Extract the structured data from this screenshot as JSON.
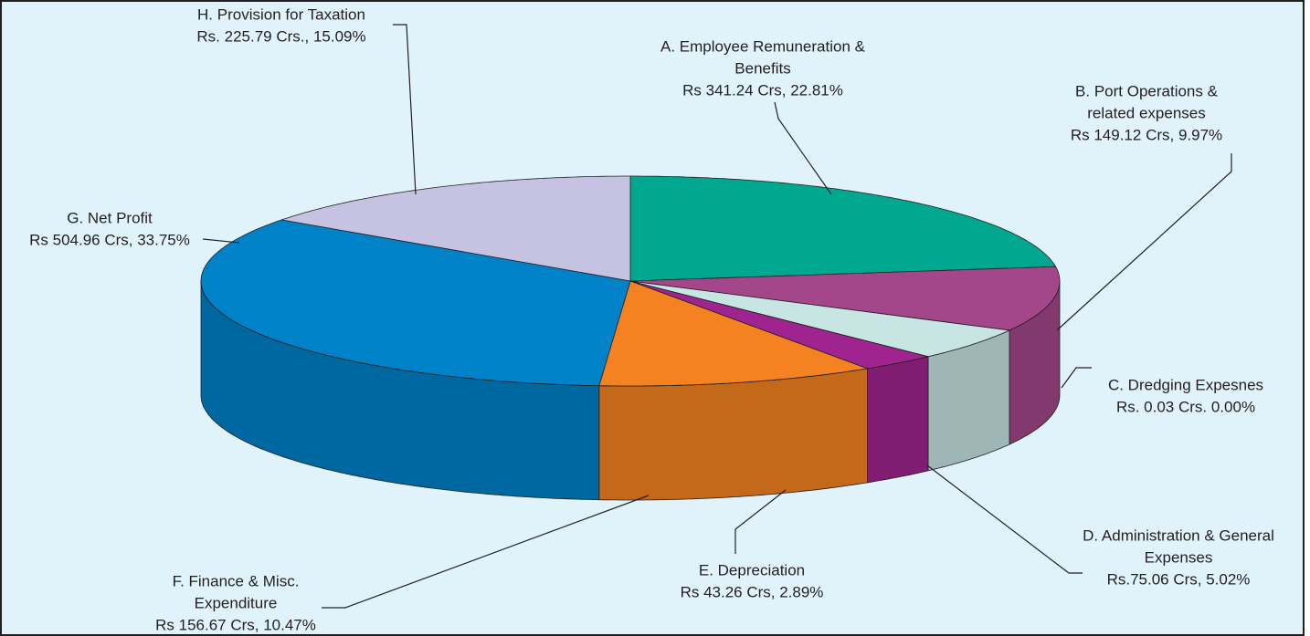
{
  "chart_data": {
    "type": "pie3d",
    "labels": [
      [
        "A. Employee Remuneration &",
        "Benefits",
        "Rs 341.24 Crs, 22.81%"
      ],
      [
        "B. Port Operations &",
        "related expenses",
        "Rs 149.12 Crs, 9.97%"
      ],
      [
        "C. Dredging Expesnes",
        "Rs. 0.03 Crs. 0.00%"
      ],
      [
        "D. Administration & General",
        "Expenses",
        "Rs.75.06 Crs, 5.02%"
      ],
      [
        "E. Depreciation",
        "Rs 43.26 Crs, 2.89%"
      ],
      [
        "F.  Finance & Misc.",
        "Expenditure",
        "Rs 156.67 Crs, 10.47%"
      ],
      [
        "G. Net Profit",
        "Rs 504.96 Crs, 33.75%"
      ],
      [
        "H. Provision for Taxation",
        "Rs. 225.79 Crs., 15.09%"
      ]
    ],
    "values": [
      22.81,
      9.97,
      0.0,
      5.02,
      2.89,
      10.47,
      33.75,
      15.09
    ],
    "colors": [
      "#00a88f",
      "#a3478a",
      "#2e3192",
      "#c6e5e3",
      "#a0248f",
      "#f58220",
      "#0082c8",
      "#c5c3e1"
    ]
  }
}
